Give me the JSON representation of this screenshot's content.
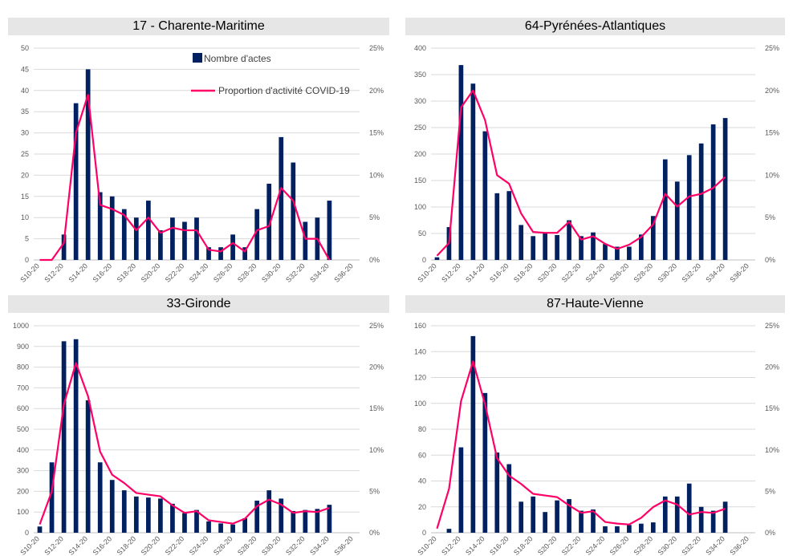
{
  "colors": {
    "bar": "#002060",
    "line": "#ff0066",
    "grid": "#d9d9d9",
    "title_bg": "#e7e6e6"
  },
  "legend": {
    "bars": "Nombre d'actes",
    "line": "Proportion d'activité COVID-19"
  },
  "chart_data": [
    {
      "type": "bar",
      "title": "17 - Charente-Maritime",
      "categories": [
        "S10-20",
        "S11-20",
        "S12-20",
        "S13-20",
        "S14-20",
        "S15-20",
        "S16-20",
        "S17-20",
        "S18-20",
        "S19-20",
        "S20-20",
        "S21-20",
        "S22-20",
        "S23-20",
        "S24-20",
        "S25-20",
        "S26-20",
        "S27-20",
        "S28-20",
        "S29-20",
        "S30-20",
        "S31-20",
        "S32-20",
        "S33-20",
        "S34-20",
        "S35-20",
        "S36-20"
      ],
      "x_tick_labels": [
        "S10-20",
        "S12-20",
        "S14-20",
        "S16-20",
        "S18-20",
        "S20-20",
        "S22-20",
        "S24-20",
        "S26-20",
        "S28-20",
        "S30-20",
        "S32-20",
        "S34-20",
        "S36-20"
      ],
      "series": [
        {
          "name": "Nombre d'actes",
          "axis": "left",
          "type": "bar",
          "values": [
            0,
            0,
            6,
            37,
            45,
            16,
            15,
            12,
            10,
            14,
            7,
            10,
            9,
            10,
            3,
            3,
            6,
            3,
            12,
            18,
            29,
            23,
            9,
            10,
            14,
            0,
            0
          ]
        },
        {
          "name": "Proportion d'activité COVID-19",
          "axis": "right",
          "type": "line",
          "values": [
            0,
            0,
            2,
            15,
            19.5,
            6.5,
            6,
            5.3,
            3.5,
            5,
            3.2,
            3.8,
            3.5,
            3.5,
            1.2,
            1,
            2,
            1,
            3.5,
            4,
            8.5,
            7,
            2.5,
            2.5,
            0,
            null,
            null
          ]
        }
      ],
      "ylim": [
        0,
        50
      ],
      "y_ticks": [
        0,
        5,
        10,
        15,
        20,
        25,
        30,
        35,
        40,
        45,
        50
      ],
      "y2lim": [
        0,
        25
      ],
      "y2_ticks": [
        "0%",
        "5%",
        "10%",
        "15%",
        "20%",
        "25%"
      ],
      "show_legend": true
    },
    {
      "type": "bar",
      "title": "64-Pyrénées-Atlantiques",
      "categories": [
        "S10-20",
        "S11-20",
        "S12-20",
        "S13-20",
        "S14-20",
        "S15-20",
        "S16-20",
        "S17-20",
        "S18-20",
        "S19-20",
        "S20-20",
        "S21-20",
        "S22-20",
        "S23-20",
        "S24-20",
        "S25-20",
        "S26-20",
        "S27-20",
        "S28-20",
        "S29-20",
        "S30-20",
        "S31-20",
        "S32-20",
        "S33-20",
        "S34-20",
        "S35-20",
        "S36-20"
      ],
      "x_tick_labels": [
        "S10-20",
        "S12-20",
        "S14-20",
        "S16-20",
        "S18-20",
        "S20-20",
        "S22-20",
        "S24-20",
        "S26-20",
        "S28-20",
        "S30-20",
        "S32-20",
        "S34-20",
        "S36-20"
      ],
      "series": [
        {
          "name": "Nombre d'actes",
          "axis": "left",
          "type": "bar",
          "values": [
            5,
            62,
            368,
            333,
            243,
            126,
            130,
            66,
            45,
            50,
            47,
            75,
            45,
            52,
            30,
            25,
            25,
            48,
            83,
            190,
            148,
            198,
            220,
            256,
            268,
            0,
            0
          ]
        },
        {
          "name": "Proportion d'activité COVID-19",
          "axis": "right",
          "type": "line",
          "values": [
            0.5,
            2,
            18,
            20,
            16.5,
            10,
            9,
            5.5,
            3.3,
            3.2,
            3.2,
            4.5,
            2.4,
            2.8,
            1.9,
            1.3,
            1.8,
            2.7,
            4.2,
            7.8,
            6.3,
            7.5,
            7.8,
            8.5,
            9.8,
            null,
            null
          ]
        }
      ],
      "ylim": [
        0,
        400
      ],
      "y_ticks": [
        0,
        50,
        100,
        150,
        200,
        250,
        300,
        350,
        400
      ],
      "y2lim": [
        0,
        25
      ],
      "y2_ticks": [
        "0%",
        "5%",
        "10%",
        "15%",
        "20%",
        "25%"
      ],
      "show_legend": false
    },
    {
      "type": "bar",
      "title": "33-Gironde",
      "categories": [
        "S10-20",
        "S11-20",
        "S12-20",
        "S13-20",
        "S14-20",
        "S15-20",
        "S16-20",
        "S17-20",
        "S18-20",
        "S19-20",
        "S20-20",
        "S21-20",
        "S22-20",
        "S23-20",
        "S24-20",
        "S25-20",
        "S26-20",
        "S27-20",
        "S28-20",
        "S29-20",
        "S30-20",
        "S31-20",
        "S32-20",
        "S33-20",
        "S34-20",
        "S35-20",
        "S36-20"
      ],
      "x_tick_labels": [
        "S10-20",
        "S12-20",
        "S14-20",
        "S16-20",
        "S18-20",
        "S20-20",
        "S22-20",
        "S24-20",
        "S26-20",
        "S28-20",
        "S30-20",
        "S32-20",
        "S34-20",
        "S36-20"
      ],
      "series": [
        {
          "name": "Nombre d'actes",
          "axis": "left",
          "type": "bar",
          "values": [
            30,
            340,
            925,
            935,
            640,
            340,
            255,
            205,
            175,
            170,
            165,
            140,
            95,
            110,
            55,
            45,
            40,
            70,
            155,
            205,
            165,
            105,
            110,
            115,
            135,
            0,
            0
          ]
        },
        {
          "name": "Proportion d'activité COVID-19",
          "axis": "right",
          "type": "line",
          "values": [
            1,
            5,
            15.5,
            20.5,
            16.5,
            9.8,
            7,
            6,
            4.8,
            4.6,
            4.4,
            3.3,
            2.4,
            2.6,
            1.5,
            1.3,
            1.1,
            1.7,
            3.2,
            4,
            3.4,
            2.4,
            2.6,
            2.5,
            3,
            null,
            null
          ]
        }
      ],
      "ylim": [
        0,
        1000
      ],
      "y_ticks": [
        0,
        100,
        200,
        300,
        400,
        500,
        600,
        700,
        800,
        900,
        1000
      ],
      "y2lim": [
        0,
        25
      ],
      "y2_ticks": [
        "0%",
        "5%",
        "10%",
        "15%",
        "20%",
        "25%"
      ],
      "show_legend": false
    },
    {
      "type": "bar",
      "title": "87-Haute-Vienne",
      "categories": [
        "S10-20",
        "S11-20",
        "S12-20",
        "S13-20",
        "S14-20",
        "S15-20",
        "S16-20",
        "S17-20",
        "S18-20",
        "S19-20",
        "S20-20",
        "S21-20",
        "S22-20",
        "S23-20",
        "S24-20",
        "S25-20",
        "S26-20",
        "S27-20",
        "S28-20",
        "S29-20",
        "S30-20",
        "S31-20",
        "S32-20",
        "S33-20",
        "S34-20",
        "S35-20",
        "S36-20"
      ],
      "x_tick_labels": [
        "S10-20",
        "S12-20",
        "S14-20",
        "S16-20",
        "S18-20",
        "S20-20",
        "S22-20",
        "S24-20",
        "S26-20",
        "S28-20",
        "S30-20",
        "S32-20",
        "S34-20",
        "S36-20"
      ],
      "series": [
        {
          "name": "Nombre d'actes",
          "axis": "left",
          "type": "bar",
          "values": [
            0,
            3,
            66,
            152,
            108,
            62,
            53,
            24,
            28,
            16,
            25,
            26,
            17,
            18,
            5,
            5,
            6,
            7,
            8,
            28,
            28,
            38,
            20,
            17,
            24,
            0,
            0
          ]
        },
        {
          "name": "Proportion d'activité COVID-19",
          "axis": "right",
          "type": "line",
          "values": [
            0.5,
            5.3,
            15.9,
            20.7,
            15.5,
            9,
            6.9,
            5.9,
            4.7,
            4.5,
            4.3,
            3.3,
            2.4,
            2.6,
            1.3,
            1.1,
            1,
            1.8,
            3.1,
            3.9,
            3.4,
            2.2,
            2.5,
            2.4,
            2.9,
            null,
            null
          ]
        }
      ],
      "ylim": [
        0,
        160
      ],
      "y_ticks": [
        0,
        20,
        40,
        60,
        80,
        100,
        120,
        140,
        160
      ],
      "y2lim": [
        0,
        25
      ],
      "y2_ticks": [
        "0%",
        "5%",
        "10%",
        "15%",
        "20%",
        "25%"
      ],
      "show_legend": false
    }
  ]
}
